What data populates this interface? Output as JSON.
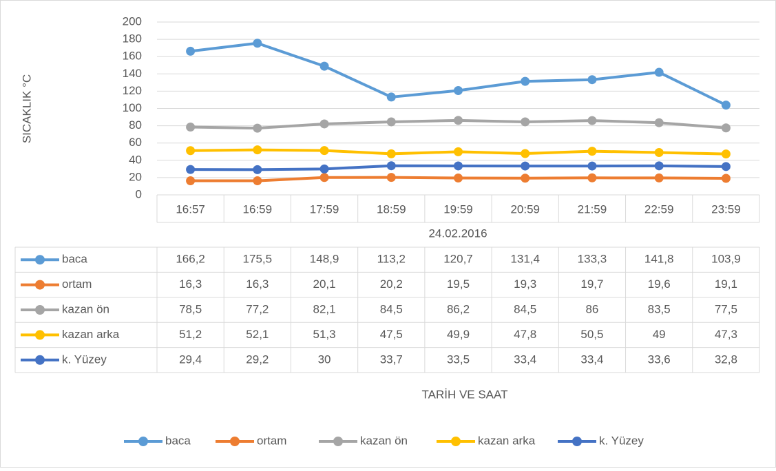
{
  "chart_data": {
    "type": "line",
    "y_axis_label": "SICAKLIK °C",
    "x_axis_label": "TARİH VE SAAT",
    "date_label": "24.02.2016",
    "categories": [
      "16:57",
      "16:59",
      "17:59",
      "18:59",
      "19:59",
      "20:59",
      "21:59",
      "22:59",
      "23:59"
    ],
    "series": [
      {
        "name": "baca",
        "color": "#5b9bd5",
        "values": [
          166.2,
          175.5,
          148.9,
          113.2,
          120.7,
          131.4,
          133.3,
          141.8,
          103.9
        ],
        "value_labels": [
          "166,2",
          "175,5",
          "148,9",
          "113,2",
          "120,7",
          "131,4",
          "133,3",
          "141,8",
          "103,9"
        ]
      },
      {
        "name": "ortam",
        "color": "#ed7d31",
        "values": [
          16.3,
          16.3,
          20.1,
          20.2,
          19.5,
          19.3,
          19.7,
          19.6,
          19.1
        ],
        "value_labels": [
          "16,3",
          "16,3",
          "20,1",
          "20,2",
          "19,5",
          "19,3",
          "19,7",
          "19,6",
          "19,1"
        ]
      },
      {
        "name": "kazan ön",
        "color": "#a5a5a5",
        "values": [
          78.5,
          77.2,
          82.1,
          84.5,
          86.2,
          84.5,
          86,
          83.5,
          77.5
        ],
        "value_labels": [
          "78,5",
          "77,2",
          "82,1",
          "84,5",
          "86,2",
          "84,5",
          "86",
          "83,5",
          "77,5"
        ]
      },
      {
        "name": "kazan arka",
        "color": "#ffc000",
        "values": [
          51.2,
          52.1,
          51.3,
          47.5,
          49.9,
          47.8,
          50.5,
          49,
          47.3
        ],
        "value_labels": [
          "51,2",
          "52,1",
          "51,3",
          "47,5",
          "49,9",
          "47,8",
          "50,5",
          "49",
          "47,3"
        ]
      },
      {
        "name": "k. Yüzey",
        "color": "#4472c4",
        "values": [
          29.4,
          29.2,
          30,
          33.7,
          33.5,
          33.4,
          33.4,
          33.6,
          32.8
        ],
        "value_labels": [
          "29,4",
          "29,2",
          "30",
          "33,7",
          "33,5",
          "33,4",
          "33,4",
          "33,6",
          "32,8"
        ]
      }
    ],
    "ylim": [
      0,
      200
    ],
    "yticks": [
      0,
      20,
      40,
      60,
      80,
      100,
      120,
      140,
      160,
      180,
      200
    ],
    "grid": true
  }
}
